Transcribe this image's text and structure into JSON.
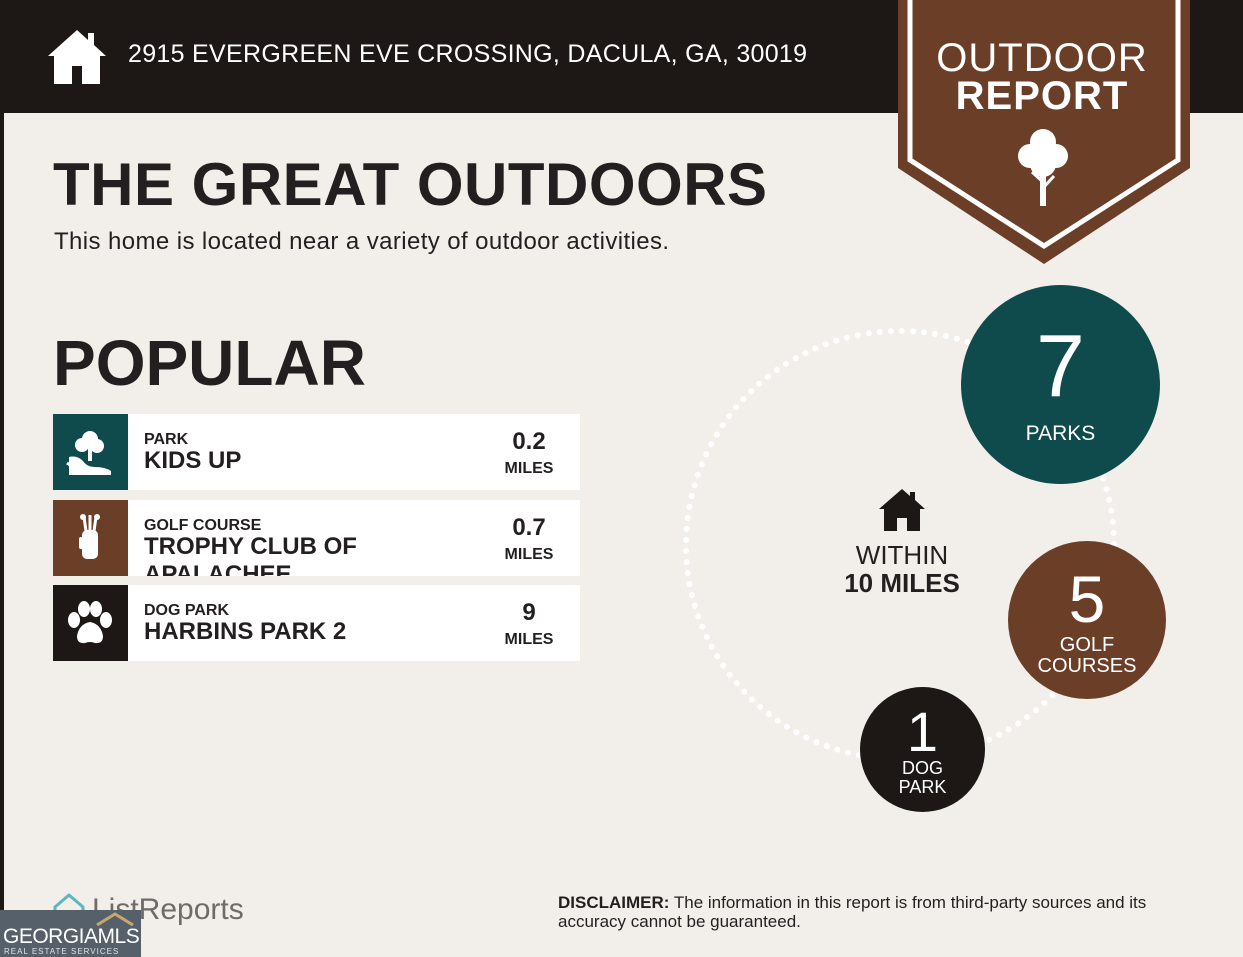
{
  "header": {
    "address": "2915 EVERGREEN EVE CROSSING, DACULA, GA, 30019",
    "icon": "home-icon"
  },
  "badge": {
    "line1": "OUTDOOR",
    "line2": "REPORT",
    "icon": "tree-icon",
    "color": "#6b3f27"
  },
  "main": {
    "title": "THE GREAT OUTDOORS",
    "subtitle": "This home is located near a variety of outdoor activities.",
    "section_title": "POPULAR"
  },
  "popular": [
    {
      "category": "PARK",
      "name": "KIDS UP",
      "distance": "0.2",
      "unit": "MILES",
      "icon": "park-icon",
      "color": "#0f4b4c"
    },
    {
      "category": "GOLF COURSE",
      "name": "TROPHY CLUB OF APALACHEE",
      "distance": "0.7",
      "unit": "MILES",
      "icon": "golf-bag-icon",
      "color": "#6b3f27"
    },
    {
      "category": "DOG PARK",
      "name": "HARBINS PARK 2",
      "distance": "9",
      "unit": "MILES",
      "icon": "paw-icon",
      "color": "#1d1715"
    }
  ],
  "radius": {
    "line1": "WITHIN",
    "line2": "10 MILES",
    "icon": "home-icon"
  },
  "counts": {
    "parks": {
      "count": "7",
      "label": "PARKS",
      "color": "#0f4b4c"
    },
    "golf": {
      "count": "5",
      "label_line1": "GOLF",
      "label_line2": "COURSES",
      "color": "#6b3f27"
    },
    "dog": {
      "count": "1",
      "label_line1": "DOG",
      "label_line2": "PARK",
      "color": "#1d1715"
    }
  },
  "footer": {
    "brand": "ListReports",
    "disclaimer_label": "DISCLAIMER:",
    "disclaimer_text": " The information in this report is from third-party sources and its accuracy cannot be guaranteed."
  },
  "watermark": {
    "name": "GEORGIAMLS",
    "tagline": "REAL ESTATE SERVICES"
  }
}
